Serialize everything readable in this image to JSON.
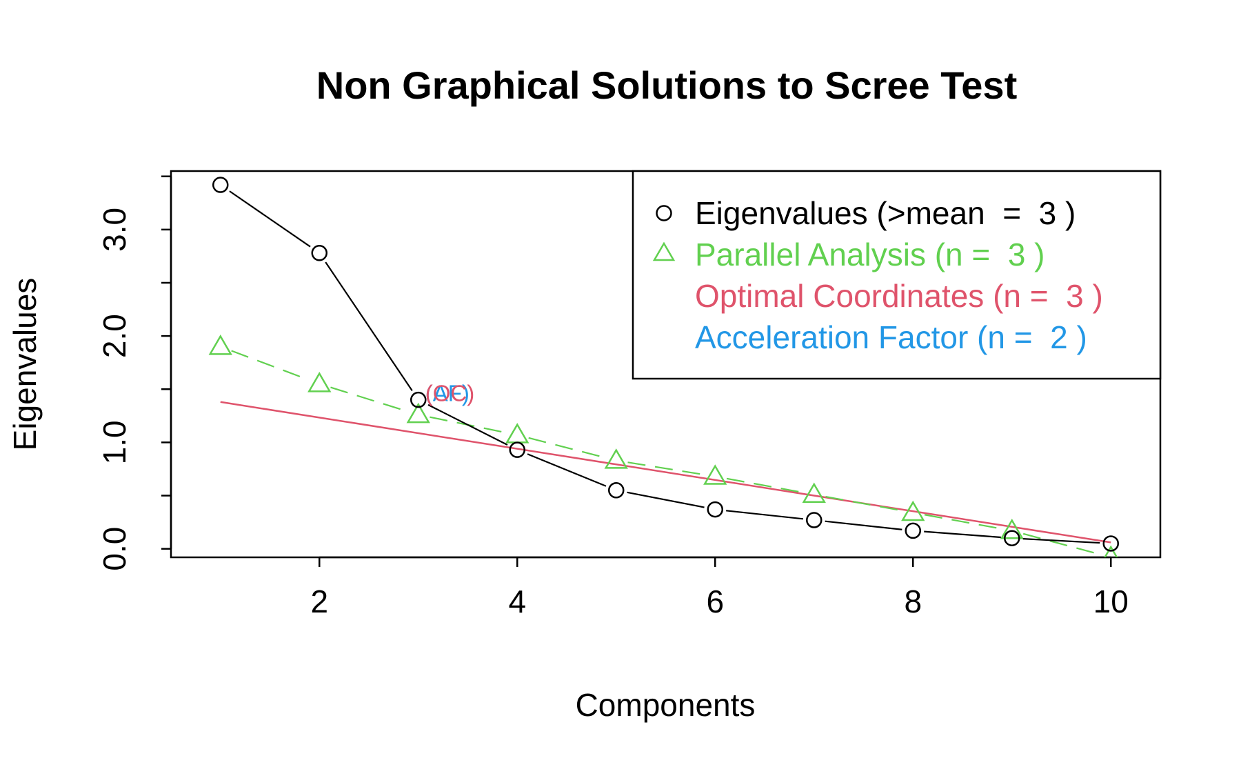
{
  "chart_data": {
    "type": "line",
    "title": "Non Graphical Solutions to Scree Test",
    "xlabel": "Components",
    "ylabel": "Eigenvalues",
    "xlim": [
      0.5,
      10.5
    ],
    "ylim": [
      -0.08,
      3.55
    ],
    "x_ticks": [
      2,
      4,
      6,
      8,
      10
    ],
    "x_tick_labels": [
      "2",
      "4",
      "6",
      "8",
      "10"
    ],
    "y_ticks": [
      0.0,
      0.5,
      1.0,
      1.5,
      2.0,
      2.5,
      3.0,
      3.5
    ],
    "y_tick_labels": [
      "0.0",
      "1.0",
      "2.0",
      "3.0"
    ],
    "y_labeled_ticks": [
      0.0,
      1.0,
      2.0,
      3.0
    ],
    "x": [
      1,
      2,
      3,
      4,
      5,
      6,
      7,
      8,
      9,
      10
    ],
    "series": [
      {
        "name": "Eigenvalues (>mean  =  3 )",
        "marker": "circle",
        "line": "solid",
        "color": "#000000",
        "values": [
          3.42,
          2.78,
          1.4,
          0.93,
          0.55,
          0.37,
          0.27,
          0.17,
          0.1,
          0.05
        ]
      },
      {
        "name": "Parallel Analysis (n =  3 )",
        "marker": "triangle",
        "line": "dashed",
        "color": "#61D04F",
        "values": [
          1.9,
          1.55,
          1.26,
          1.07,
          0.83,
          0.68,
          0.51,
          0.34,
          0.17,
          -0.08
        ]
      },
      {
        "name": "Optimal Coordinates (n =  3 )",
        "marker": "none",
        "line": "solid",
        "color": "#DF536B",
        "x_range": [
          1,
          10
        ],
        "values_at_range": [
          1.38,
          0.06
        ]
      },
      {
        "name": "Acceleration Factor (n =  2 )",
        "marker": "none",
        "line": "none",
        "color": "#2297E6"
      }
    ],
    "annotations": [
      {
        "text": "(AF)",
        "x": 3,
        "y": 1.4,
        "color": "#2297E6"
      },
      {
        "text": "(OC)",
        "x": 3,
        "y": 1.4,
        "color": "#DF536B"
      }
    ],
    "legend_position": "top-right",
    "grid": false
  }
}
